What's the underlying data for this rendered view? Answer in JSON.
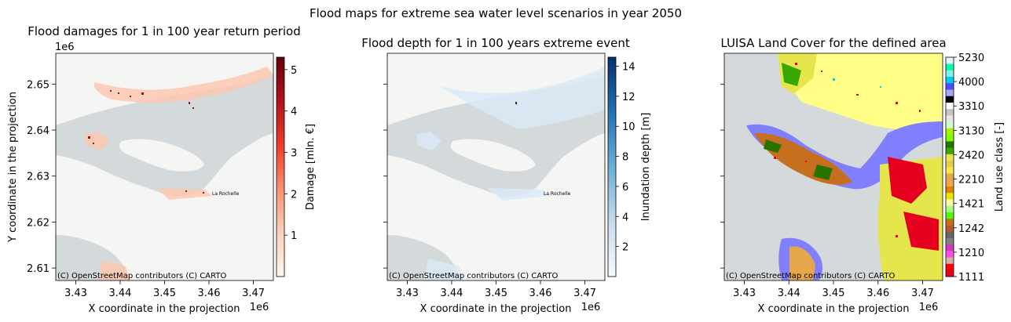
{
  "figure": {
    "suptitle": "Flood maps for extreme sea water level scenarios in year 2050"
  },
  "axes_common": {
    "xlabel": "X coordinate in the projection",
    "ylabel": "Y coordinate in the projection",
    "x_offset": "1e6",
    "y_offset": "1e6",
    "x_ticks": [
      "3.43",
      "3.44",
      "3.45",
      "3.46",
      "3.47"
    ],
    "y_ticks": [
      "2.61",
      "2.62",
      "2.63",
      "2.64",
      "2.65"
    ],
    "attribution": "(C) OpenStreetMap contributors (C) CARTO",
    "city_label": "La Rochelle"
  },
  "panels": [
    {
      "title": "Flood damages for 1 in 100 year return period",
      "cbar_label": "Damage [mln. €]",
      "cbar_ticks": [
        "1",
        "2",
        "3",
        "4",
        "5"
      ],
      "cbar_range": [
        0,
        5.3
      ],
      "cbar_colors": [
        "#fff5f0",
        "#fdd0bb",
        "#fc8f6f",
        "#ef3b2c",
        "#b11218",
        "#67000d"
      ]
    },
    {
      "title": "Flood depth for 1 in 100 years extreme event",
      "cbar_label": "Inundation depth [m]",
      "cbar_ticks": [
        "2",
        "4",
        "6",
        "8",
        "10",
        "12",
        "14"
      ],
      "cbar_range": [
        0,
        14.6
      ],
      "cbar_colors": [
        "#f7fbff",
        "#c6dbef",
        "#6baed6",
        "#2171b5",
        "#08306b"
      ]
    },
    {
      "title": "LUISA Land Cover for the defined area",
      "cbar_label": "Land use class [-]",
      "cbar_ticks": [
        "1111",
        "1210",
        "1242",
        "1421",
        "2210",
        "2420",
        "3130",
        "3310",
        "4000",
        "5230"
      ],
      "classes_colors": [
        "#e6001f",
        "#ff0000",
        "#d6b0a8",
        "#ff4ce6",
        "#cf3ac2",
        "#808080",
        "#666666",
        "#b35a2b",
        "#c66f1f",
        "#4cff00",
        "#a6ff80",
        "#ffffa8",
        "#e6e600",
        "#e68000",
        "#f2a64c",
        "#e6a64c",
        "#ffe64c",
        "#e6cc4d",
        "#e6e64c",
        "#38a800",
        "#267300",
        "#80ff00",
        "#a6f200",
        "#ccffcc",
        "#e6e6e6",
        "#ccc2c2",
        "#ffffff",
        "#000000",
        "#a6a6ff",
        "#4d4dff",
        "#00ccf2",
        "#80f2e6",
        "#00ffa6",
        "#e6f2ff"
      ]
    }
  ]
}
